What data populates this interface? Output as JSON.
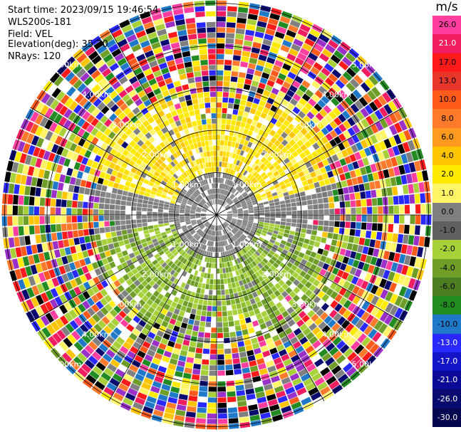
{
  "header": {
    "start_time": "Start time: 2023/09/15 19:46:54",
    "instrument": "WLS200s-181",
    "field": "Field: VEL",
    "elevation": "Elevation(deg): 35.30",
    "nrays": "NRays: 120"
  },
  "chart_data": {
    "type": "ppi",
    "units": "m/s",
    "n_rays": 120,
    "elevation_deg": 35.3,
    "range_rings": [
      {
        "label": "1.00km"
      },
      {
        "label": "2.00km"
      },
      {
        "label": "3.00km"
      },
      {
        "label": "4.00km"
      },
      {
        "label": "5.00km"
      }
    ],
    "colorbar": {
      "ticks": [
        "26.0",
        "21.0",
        "17.0",
        "13.0",
        "10.0",
        "8.0",
        "6.0",
        "4.0",
        "2.0",
        "1.0",
        "0.0",
        "-1.0",
        "-2.0",
        "-4.0",
        "-6.0",
        "-8.0",
        "-10.0",
        "-13.0",
        "-17.0",
        "-21.0",
        "-26.0",
        "-30.0"
      ],
      "colors": [
        "#ff3ea0",
        "#f01e60",
        "#ff1a1a",
        "#e8362a",
        "#ff5a1a",
        "#ff7a2a",
        "#ff9a1e",
        "#ffc400",
        "#ffea00",
        "#fff566",
        "#808080",
        "#606060",
        "#a8d038",
        "#6e9e28",
        "#4e7e22",
        "#228b22",
        "#1f78c8",
        "#2828ff",
        "#1414c8",
        "#0a0a96",
        "#0a0a6e",
        "#060650"
      ],
      "tick_colors": [
        "#000",
        "#fff",
        "#000",
        "#000",
        "#000",
        "#000",
        "#000",
        "#000",
        "#000",
        "#000",
        "#000",
        "#000",
        "#000",
        "#000",
        "#000",
        "#000",
        "#000",
        "#fff",
        "#fff",
        "#fff",
        "#fff",
        "#fff"
      ]
    }
  }
}
